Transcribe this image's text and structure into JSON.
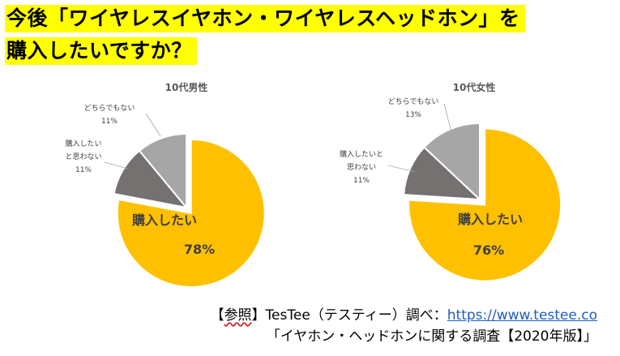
{
  "title": {
    "line1": "今後「ワイヤレスイヤホン・ワイヤレスヘッドホン」を",
    "line2": "購入したいですか？"
  },
  "chart_data": [
    {
      "type": "pie",
      "title": "10代男性",
      "slices": [
        {
          "label": "購入したい",
          "value": 78,
          "display": "78%",
          "color": "#FFC000",
          "exploded": true
        },
        {
          "label": "購入したいと思わない",
          "label_lines": [
            "購入したい",
            "と思わない"
          ],
          "value": 11,
          "display": "11%",
          "color": "#767171"
        },
        {
          "label": "どちらでもない",
          "label_lines": [
            "どちらでもない"
          ],
          "value": 11,
          "display": "11%",
          "color": "#A6A6A6"
        }
      ]
    },
    {
      "type": "pie",
      "title": "10代女性",
      "slices": [
        {
          "label": "購入したい",
          "value": 76,
          "display": "76%",
          "color": "#FFC000",
          "exploded": true
        },
        {
          "label": "購入したいと思わない",
          "label_lines": [
            "購入したいと",
            "思わない"
          ],
          "value": 11,
          "display": "11%",
          "color": "#767171"
        },
        {
          "label": "どちらでもない",
          "label_lines": [
            "どちらでもない"
          ],
          "value": 13,
          "display": "13%",
          "color": "#A6A6A6"
        }
      ]
    }
  ],
  "footer": {
    "bracket_open": "【",
    "ref_label": "参照",
    "ref_rest": "】TesTee（テスティー）調べ：",
    "url": "https://www.testee.co",
    "line2": "「イヤホン・ヘッドホンに関する調査【2020年版】」"
  }
}
